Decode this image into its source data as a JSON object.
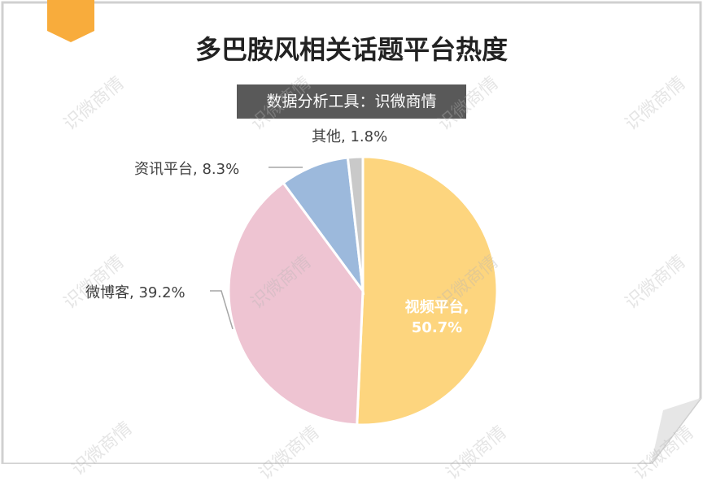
{
  "chart_data": {
    "type": "pie",
    "title": "多巴胺风相关话题平台热度",
    "subtitle": "数据分析工具：识微商情",
    "values": [
      50.7,
      39.2,
      8.3,
      1.8
    ],
    "value_labels": [
      "视频平台, 50.7%",
      "微博客, 39.2%",
      "资讯平台, 8.3%",
      "其他, 1.8%"
    ],
    "colors": [
      "#FDD57E",
      "#EEC4D2",
      "#9CB9DC",
      "#C9C9C9"
    ],
    "watermark": "识微商情"
  }
}
